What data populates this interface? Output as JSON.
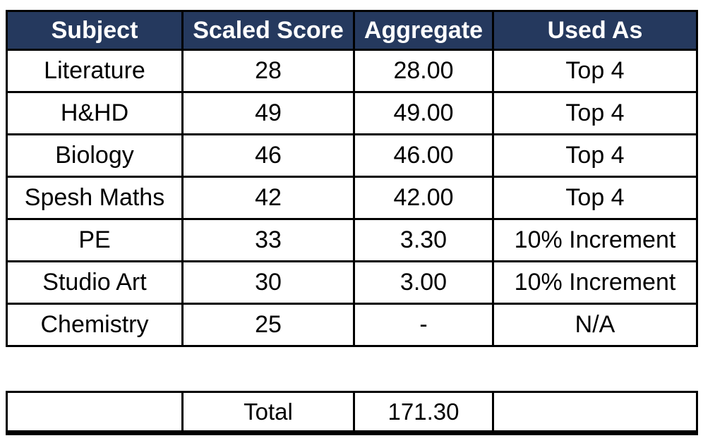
{
  "colors": {
    "header_bg": "#25395E",
    "header_text": "#FFFFFF",
    "border": "#000000",
    "body_text": "#000000",
    "background": "#FFFFFF"
  },
  "main_table": {
    "headers": [
      "Subject",
      "Scaled Score",
      "Aggregate",
      "Used As"
    ],
    "rows": [
      [
        "Literature",
        "28",
        "28.00",
        "Top 4"
      ],
      [
        "H&HD",
        "49",
        "49.00",
        "Top 4"
      ],
      [
        "Biology",
        "46",
        "46.00",
        "Top 4"
      ],
      [
        "Spesh Maths",
        "42",
        "42.00",
        "Top 4"
      ],
      [
        "PE",
        "33",
        "3.30",
        "10% Increment"
      ],
      [
        "Studio Art",
        "30",
        "3.00",
        "10% Increment"
      ],
      [
        "Chemistry",
        "25",
        "-",
        "N/A"
      ]
    ]
  },
  "total_table": {
    "cells": [
      "",
      "Total",
      "171.30",
      ""
    ]
  }
}
